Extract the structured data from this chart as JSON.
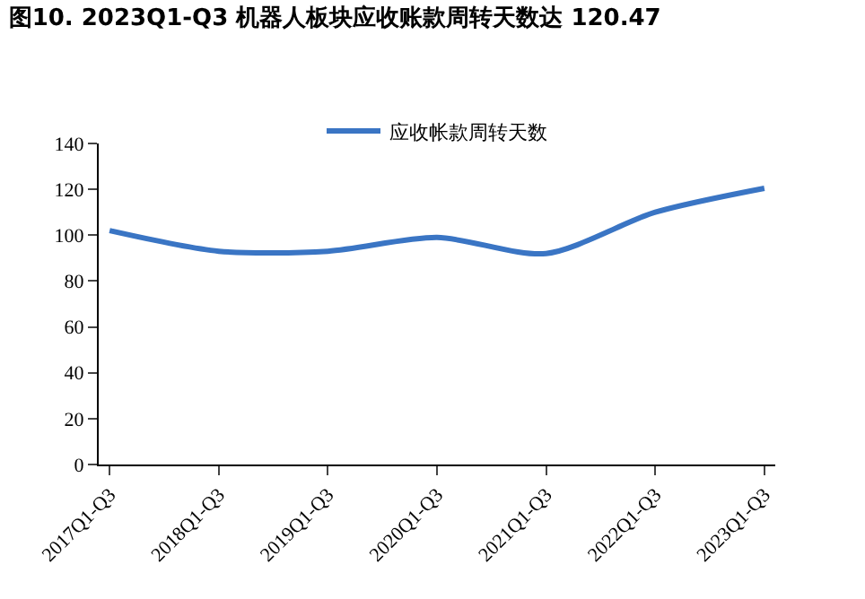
{
  "chart_data": {
    "type": "line",
    "title": "图10. 2023Q1-Q3 机器人板块应收账款周转天数达 120.47",
    "categories": [
      "2017Q1-Q3",
      "2018Q1-Q3",
      "2019Q1-Q3",
      "2020Q1-Q3",
      "2021Q1-Q3",
      "2022Q1-Q3",
      "2023Q1-Q3"
    ],
    "series": [
      {
        "name": "应收帐款周转天数",
        "color": "#3a75c4",
        "values": [
          102,
          93,
          93,
          99,
          92,
          110,
          120.47
        ]
      }
    ],
    "ylim": [
      0,
      140
    ],
    "yticks": [
      0,
      20,
      40,
      60,
      80,
      100,
      120,
      140
    ],
    "legend": "top",
    "marker": "none",
    "line_style": "solid"
  }
}
